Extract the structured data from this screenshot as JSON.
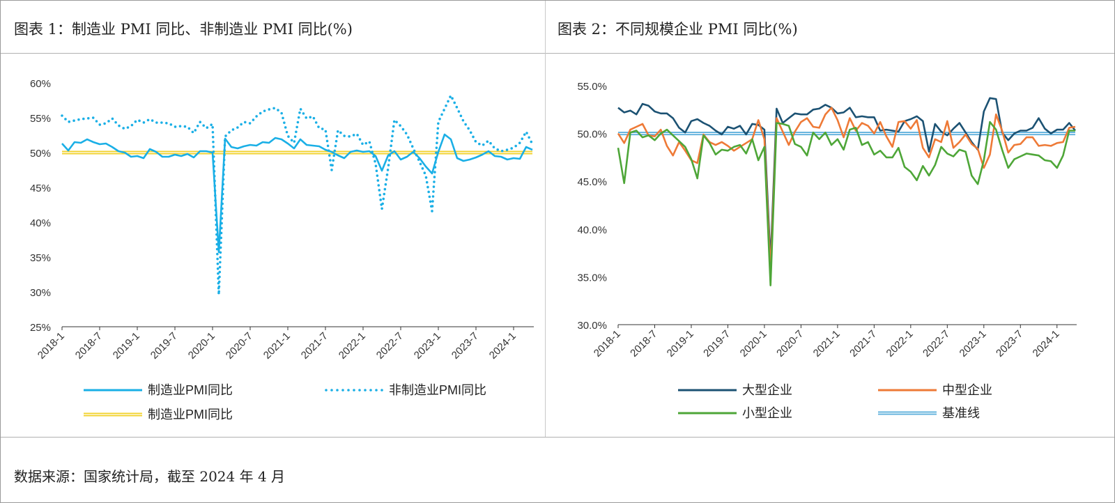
{
  "left_panel": {
    "title": "图表 1：制造业 PMI 同比、非制造业 PMI 同比(%)"
  },
  "right_panel": {
    "title": "图表 2：不同规模企业 PMI 同比(%)"
  },
  "footer": {
    "source": "数据来源：国家统计局，截至 2024 年 4 月"
  },
  "chart_data": [
    {
      "type": "line",
      "x_ticks": [
        "2018-1",
        "2018-7",
        "2019-1",
        "2019-7",
        "2020-1",
        "2020-7",
        "2021-1",
        "2021-7",
        "2022-1",
        "2022-7",
        "2023-1",
        "2023-7",
        "2024-1"
      ],
      "x_range": [
        "2018-1",
        "2024-4"
      ],
      "y_ticks": [
        "25%",
        "30%",
        "35%",
        "40%",
        "45%",
        "50%",
        "55%",
        "60%"
      ],
      "ylim": [
        25,
        60
      ],
      "legend_position": "bottom",
      "series": [
        {
          "name": "制造业PMI同比",
          "style": "solid",
          "color": "#1aafe6",
          "values": [
            51.3,
            50.3,
            51.5,
            51.4,
            51.9,
            51.5,
            51.2,
            51.3,
            50.8,
            50.2,
            50.0,
            49.4,
            49.5,
            49.2,
            50.5,
            50.1,
            49.4,
            49.4,
            49.7,
            49.5,
            49.8,
            49.3,
            50.2,
            50.2,
            50.0,
            35.7,
            52.0,
            50.8,
            50.6,
            50.9,
            51.1,
            51.0,
            51.5,
            51.4,
            52.1,
            51.9,
            51.3,
            50.6,
            51.9,
            51.1,
            51.0,
            50.9,
            50.4,
            50.1,
            49.6,
            49.2,
            50.1,
            50.3,
            50.1,
            50.2,
            49.5,
            47.4,
            49.6,
            50.2,
            49.0,
            49.4,
            50.1,
            49.2,
            48.0,
            47.0,
            50.1,
            52.6,
            51.9,
            49.2,
            48.8,
            49.0,
            49.3,
            49.7,
            50.2,
            49.5,
            49.4,
            49.0,
            49.2,
            49.1,
            50.8,
            50.4
          ],
          "_x": [
            "2018-1",
            "2018-2",
            "2018-3",
            "2018-4",
            "2018-5",
            "2018-6",
            "2018-7",
            "2018-8",
            "2018-9",
            "2018-10",
            "2018-11",
            "2018-12",
            "2019-1",
            "2019-2",
            "2019-3",
            "2019-4",
            "2019-5",
            "2019-6",
            "2019-7",
            "2019-8",
            "2019-9",
            "2019-10",
            "2019-11",
            "2019-12",
            "2020-1",
            "2020-2",
            "2020-3",
            "2020-4",
            "2020-5",
            "2020-6",
            "2020-7",
            "2020-8",
            "2020-9",
            "2020-10",
            "2020-11",
            "2020-12",
            "2021-1",
            "2021-2",
            "2021-3",
            "2021-4",
            "2021-5",
            "2021-6",
            "2021-7",
            "2021-8",
            "2021-9",
            "2021-10",
            "2021-11",
            "2021-12",
            "2022-1",
            "2022-2",
            "2022-3",
            "2022-4",
            "2022-5",
            "2022-6",
            "2022-7",
            "2022-8",
            "2022-9",
            "2022-10",
            "2022-11",
            "2022-12",
            "2023-1",
            "2023-2",
            "2023-3",
            "2023-4",
            "2023-5",
            "2023-6",
            "2023-7",
            "2023-8",
            "2023-9",
            "2023-10",
            "2023-11",
            "2023-12",
            "2024-1",
            "2024-2",
            "2024-3",
            "2024-4"
          ]
        },
        {
          "name": "非制造业PMI同比",
          "style": "dotted",
          "color": "#1aafe6",
          "values": [
            55.3,
            54.4,
            54.6,
            54.8,
            54.9,
            55.0,
            54.0,
            54.2,
            54.9,
            53.9,
            53.4,
            53.8,
            54.7,
            54.3,
            54.8,
            54.3,
            54.3,
            54.2,
            53.7,
            53.8,
            53.7,
            52.8,
            54.4,
            53.5,
            54.1,
            29.6,
            52.3,
            53.2,
            53.6,
            54.4,
            54.2,
            55.2,
            55.9,
            56.2,
            56.4,
            55.7,
            52.4,
            51.4,
            56.3,
            54.9,
            55.2,
            53.5,
            53.3,
            47.5,
            53.2,
            52.4,
            52.3,
            52.7,
            51.1,
            51.6,
            48.4,
            41.9,
            47.8,
            54.7,
            53.8,
            52.6,
            50.6,
            48.7,
            46.7,
            41.6,
            54.4,
            56.3,
            58.2,
            56.4,
            54.5,
            53.2,
            51.5,
            51.0,
            51.7,
            50.6,
            50.2,
            50.4,
            50.7,
            51.4,
            53.0,
            51.2
          ]
        },
        {
          "name": "制造业PMI同比",
          "style": "double",
          "color": "#f2d22c",
          "values": [
            50,
            50,
            50,
            50,
            50,
            50,
            50,
            50,
            50,
            50,
            50,
            50,
            50,
            50,
            50,
            50,
            50,
            50,
            50,
            50,
            50,
            50,
            50,
            50,
            50,
            50,
            50,
            50,
            50,
            50,
            50,
            50,
            50,
            50,
            50,
            50,
            50,
            50,
            50,
            50,
            50,
            50,
            50,
            50,
            50,
            50,
            50,
            50,
            50,
            50,
            50,
            50,
            50,
            50,
            50,
            50,
            50,
            50,
            50,
            50,
            50,
            50,
            50,
            50,
            50,
            50,
            50,
            50,
            50,
            50,
            50,
            50,
            50,
            50,
            50,
            50
          ]
        }
      ]
    },
    {
      "type": "line",
      "x_ticks": [
        "2018-1",
        "2018-7",
        "2019-1",
        "2019-7",
        "2020-1",
        "2020-7",
        "2021-1",
        "2021-7",
        "2022-1",
        "2022-7",
        "2023-1",
        "2023-7",
        "2024-1"
      ],
      "x_range": [
        "2018-1",
        "2024-4"
      ],
      "y_ticks": [
        "30.0%",
        "35.0%",
        "40.0%",
        "45.0%",
        "50.0%",
        "55.0%"
      ],
      "ylim": [
        30,
        55
      ],
      "legend_position": "bottom",
      "series": [
        {
          "name": "大型企业",
          "style": "solid",
          "color": "#1c5273",
          "values": [
            52.7,
            52.2,
            52.4,
            52.0,
            53.1,
            52.9,
            52.3,
            52.1,
            52.1,
            51.6,
            50.6,
            50.1,
            51.3,
            51.5,
            51.1,
            50.8,
            50.3,
            49.9,
            50.7,
            50.5,
            50.8,
            49.9,
            51.0,
            50.9,
            50.4,
            36.6,
            52.6,
            51.1,
            51.6,
            52.1,
            52.0,
            52.0,
            52.5,
            52.6,
            53.0,
            52.7,
            52.1,
            52.2,
            52.7,
            51.7,
            51.8,
            51.7,
            51.7,
            50.3,
            50.4,
            50.3,
            50.2,
            51.3,
            51.5,
            51.8,
            51.3,
            48.1,
            51.0,
            50.2,
            49.8,
            50.5,
            51.1,
            50.1,
            49.1,
            48.3,
            52.3,
            53.7,
            53.6,
            50.1,
            49.3,
            50.0,
            50.3,
            50.3,
            50.6,
            51.6,
            50.5,
            50.0,
            50.4,
            50.4,
            51.1,
            50.3
          ]
        },
        {
          "name": "中型企业",
          "style": "solid",
          "color": "#ee7a37",
          "values": [
            50.0,
            49.0,
            50.4,
            50.7,
            51.0,
            49.8,
            49.7,
            50.4,
            48.7,
            47.7,
            49.1,
            48.2,
            47.2,
            46.9,
            49.9,
            49.1,
            48.8,
            49.1,
            48.7,
            48.2,
            48.6,
            49.0,
            49.4,
            51.4,
            49.4,
            35.5,
            51.6,
            50.2,
            48.8,
            50.2,
            51.2,
            51.6,
            50.7,
            50.6,
            52.0,
            52.7,
            51.4,
            49.6,
            51.6,
            50.3,
            51.1,
            50.8,
            50.0,
            51.2,
            49.7,
            48.6,
            51.2,
            51.3,
            50.5,
            51.4,
            48.5,
            47.5,
            49.4,
            49.1,
            51.3,
            48.5,
            49.1,
            49.9,
            48.9,
            48.4,
            46.4,
            47.8,
            52.0,
            50.3,
            48.0,
            48.8,
            48.9,
            49.6,
            49.6,
            48.7,
            48.8,
            48.7,
            49.0,
            49.1,
            50.6,
            50.7
          ]
        },
        {
          "name": "小型企业",
          "style": "solid",
          "color": "#4ea638",
          "values": [
            48.5,
            44.8,
            50.1,
            50.3,
            49.6,
            49.8,
            49.3,
            50.0,
            50.4,
            49.8,
            49.2,
            48.6,
            47.3,
            45.3,
            49.8,
            49.0,
            47.8,
            48.3,
            48.2,
            48.6,
            48.8,
            47.9,
            49.4,
            47.2,
            48.6,
            34.1,
            51.1,
            51.0,
            50.8,
            48.9,
            48.6,
            47.7,
            50.1,
            49.4,
            50.1,
            48.8,
            49.4,
            48.3,
            50.4,
            50.6,
            48.8,
            49.1,
            47.8,
            48.2,
            47.5,
            47.5,
            48.5,
            46.5,
            46.0,
            45.1,
            46.6,
            45.6,
            46.7,
            48.6,
            47.9,
            47.6,
            48.3,
            48.1,
            45.6,
            44.7,
            47.2,
            51.2,
            50.4,
            48.3,
            46.4,
            47.3,
            47.6,
            47.9,
            47.8,
            47.7,
            47.2,
            47.1,
            46.4,
            47.7,
            50.3,
            50.3
          ]
        },
        {
          "name": "基准线",
          "style": "double",
          "color": "#5fb0dc",
          "values": [
            50,
            50,
            50,
            50,
            50,
            50,
            50,
            50,
            50,
            50,
            50,
            50,
            50,
            50,
            50,
            50,
            50,
            50,
            50,
            50,
            50,
            50,
            50,
            50,
            50,
            50,
            50,
            50,
            50,
            50,
            50,
            50,
            50,
            50,
            50,
            50,
            50,
            50,
            50,
            50,
            50,
            50,
            50,
            50,
            50,
            50,
            50,
            50,
            50,
            50,
            50,
            50,
            50,
            50,
            50,
            50,
            50,
            50,
            50,
            50,
            50,
            50,
            50,
            50,
            50,
            50,
            50,
            50,
            50,
            50,
            50,
            50,
            50,
            50,
            50,
            50
          ]
        }
      ]
    }
  ]
}
